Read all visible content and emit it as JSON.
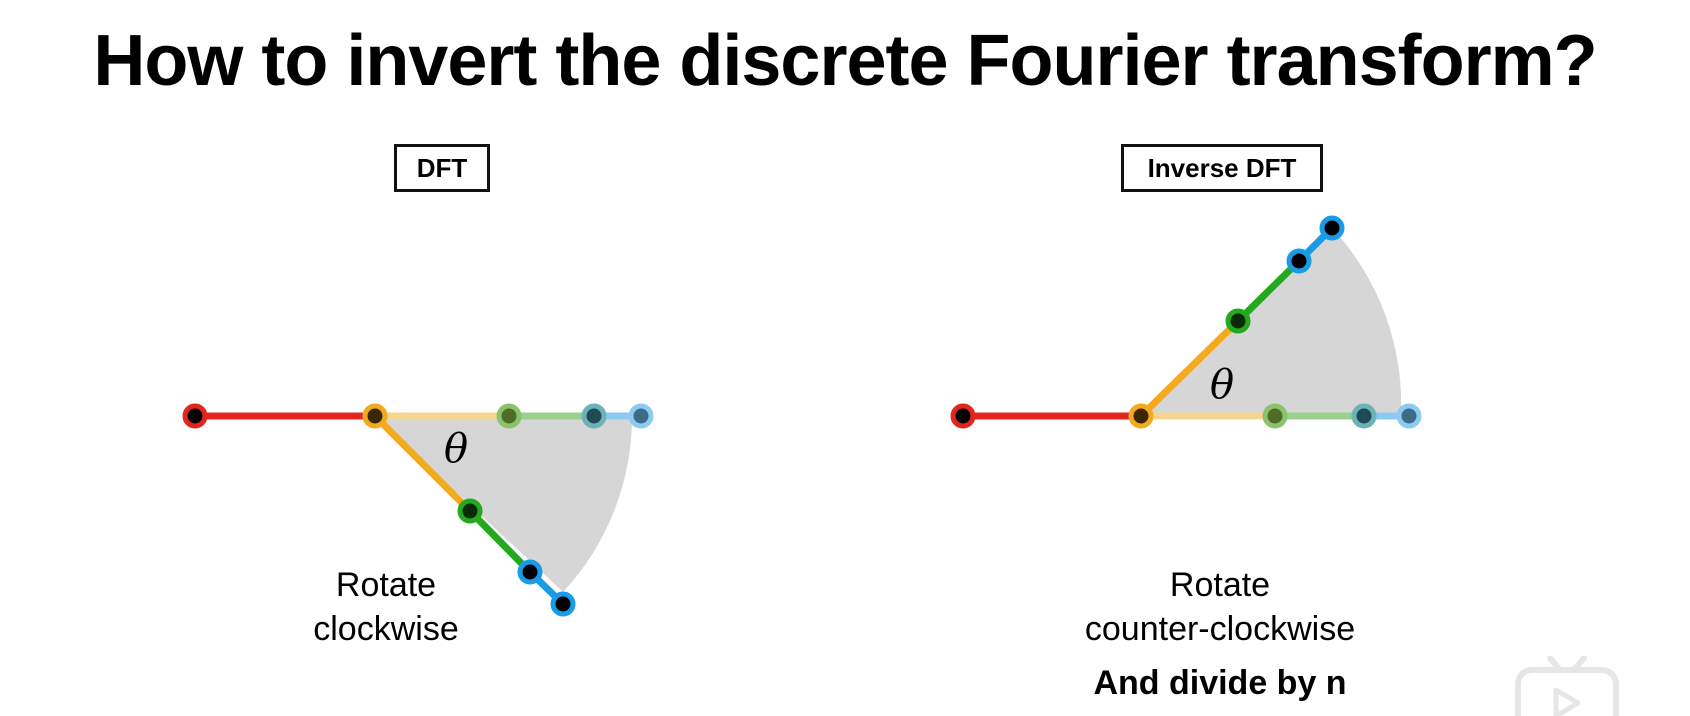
{
  "title": "How to invert the discrete Fourier transform?",
  "left_panel": {
    "label": "DFT",
    "angle_symbol": "θ",
    "caption_line1": "Rotate",
    "caption_line2": "clockwise"
  },
  "right_panel": {
    "label": "Inverse DFT",
    "angle_symbol": "θ",
    "caption_line1": "Rotate",
    "caption_line2": "counter-clockwise",
    "note": "And divide by n"
  },
  "colors": {
    "red": "#e0261f",
    "orange": "#f5a91c",
    "green": "#23a81e",
    "blue": "#1a9be8",
    "sector_fill": "#d6d6d6"
  },
  "logo_icon": "video-player-logo-icon"
}
